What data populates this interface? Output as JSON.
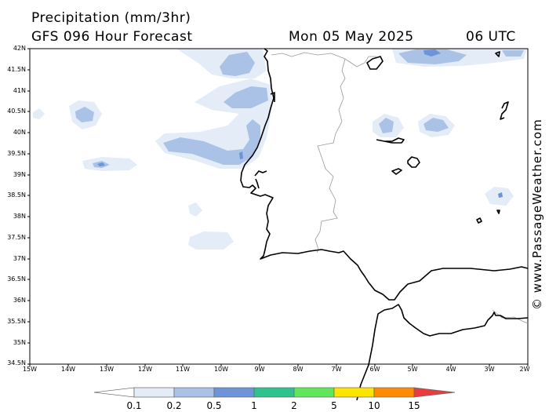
{
  "header": {
    "title": "Precipitation (mm/3hr)",
    "subtitle": "GFS 096 Hour Forecast",
    "date": "Mon 05 May 2025",
    "time": "06 UTC"
  },
  "axes": {
    "lat_labels": [
      "42N",
      "41.5N",
      "41N",
      "40.5N",
      "40N",
      "39.5N",
      "39N",
      "38.5N",
      "38N",
      "37.5N",
      "37N",
      "36.5N",
      "36N",
      "35.5N",
      "35N",
      "34.5N"
    ],
    "lon_labels": [
      "15W",
      "14W",
      "13W",
      "12W",
      "11W",
      "10W",
      "9W",
      "8W",
      "7W",
      "6W",
      "5W",
      "4W",
      "3W",
      "2W"
    ]
  },
  "credit": "© www.PassageWeather.com",
  "legend": {
    "labels": [
      "0.1",
      "0.2",
      "0.5",
      "1",
      "2",
      "5",
      "10",
      "15"
    ],
    "colors": [
      "#ffffff",
      "#e4ecf7",
      "#a9c2e6",
      "#6d94d8",
      "#2ec28f",
      "#5fe65a",
      "#ffe400",
      "#ff8c00",
      "#ea3c3c"
    ]
  }
}
